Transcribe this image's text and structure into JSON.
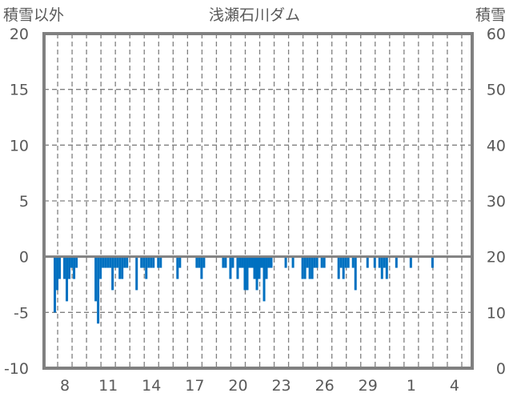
{
  "chart_data": {
    "type": "bar",
    "title": "浅瀬石川ダム",
    "ylabel_left": "積雪以外",
    "ylabel_right": "積雪",
    "ylim_left": [
      -10,
      20
    ],
    "ylim_right": [
      0,
      60
    ],
    "yticks_left": [
      "20",
      "15",
      "10",
      "5",
      "0",
      "-5",
      "-10"
    ],
    "yticks_right": [
      "60",
      "50",
      "40",
      "30",
      "20",
      "10",
      "0"
    ],
    "xtick_labels": [
      "8",
      "11",
      "14",
      "17",
      "20",
      "23",
      "26",
      "29",
      "1",
      "4"
    ],
    "bins_per_day": 6,
    "total_bins": 178,
    "grid": true,
    "bar_color": "#0070C0",
    "frame_color": "#808080",
    "series": [
      {
        "name": "積雪以外",
        "bins": [
          [
            4,
            -5
          ],
          [
            5,
            -3
          ],
          [
            6,
            -2
          ],
          [
            8,
            -2
          ],
          [
            9,
            -4
          ],
          [
            10,
            -2
          ],
          [
            11,
            -1
          ],
          [
            12,
            -2
          ],
          [
            13,
            -1
          ],
          [
            21,
            -4
          ],
          [
            22,
            -6
          ],
          [
            23,
            -2
          ],
          [
            24,
            -1
          ],
          [
            25,
            -1
          ],
          [
            26,
            -1
          ],
          [
            27,
            -1
          ],
          [
            28,
            -3
          ],
          [
            29,
            -1
          ],
          [
            30,
            -1
          ],
          [
            31,
            -2
          ],
          [
            32,
            -2
          ],
          [
            33,
            -1
          ],
          [
            34,
            -1
          ],
          [
            38,
            -3
          ],
          [
            40,
            -1
          ],
          [
            41,
            -1
          ],
          [
            42,
            -2
          ],
          [
            43,
            -1
          ],
          [
            44,
            -1
          ],
          [
            45,
            -1
          ],
          [
            47,
            -1
          ],
          [
            48,
            -1
          ],
          [
            55,
            -2
          ],
          [
            56,
            -1
          ],
          [
            63,
            -1
          ],
          [
            64,
            -1
          ],
          [
            65,
            -2
          ],
          [
            66,
            -1
          ],
          [
            74,
            -1
          ],
          [
            75,
            -1
          ],
          [
            77,
            -2
          ],
          [
            78,
            -1
          ],
          [
            80,
            -2
          ],
          [
            81,
            -1
          ],
          [
            82,
            -1
          ],
          [
            83,
            -3
          ],
          [
            84,
            -3
          ],
          [
            85,
            -1
          ],
          [
            86,
            -1
          ],
          [
            87,
            -2
          ],
          [
            88,
            -3
          ],
          [
            89,
            -2
          ],
          [
            90,
            -1
          ],
          [
            91,
            -4
          ],
          [
            92,
            -2
          ],
          [
            93,
            -1
          ],
          [
            94,
            -1
          ],
          [
            100,
            -1
          ],
          [
            103,
            -1
          ],
          [
            107,
            -2
          ],
          [
            108,
            -2
          ],
          [
            109,
            -1
          ],
          [
            110,
            -2
          ],
          [
            111,
            -2
          ],
          [
            112,
            -1
          ],
          [
            113,
            -1
          ],
          [
            115,
            -1
          ],
          [
            116,
            -1
          ],
          [
            122,
            -2
          ],
          [
            123,
            -1
          ],
          [
            124,
            -2
          ],
          [
            125,
            -1
          ],
          [
            126,
            -1
          ],
          [
            128,
            -1
          ],
          [
            129,
            -3
          ],
          [
            134,
            -1
          ],
          [
            137,
            -1
          ],
          [
            139,
            -1
          ],
          [
            140,
            -2
          ],
          [
            141,
            -1
          ],
          [
            142,
            -2
          ],
          [
            146,
            -1
          ],
          [
            152,
            -1
          ],
          [
            161,
            -1
          ]
        ]
      }
    ]
  }
}
